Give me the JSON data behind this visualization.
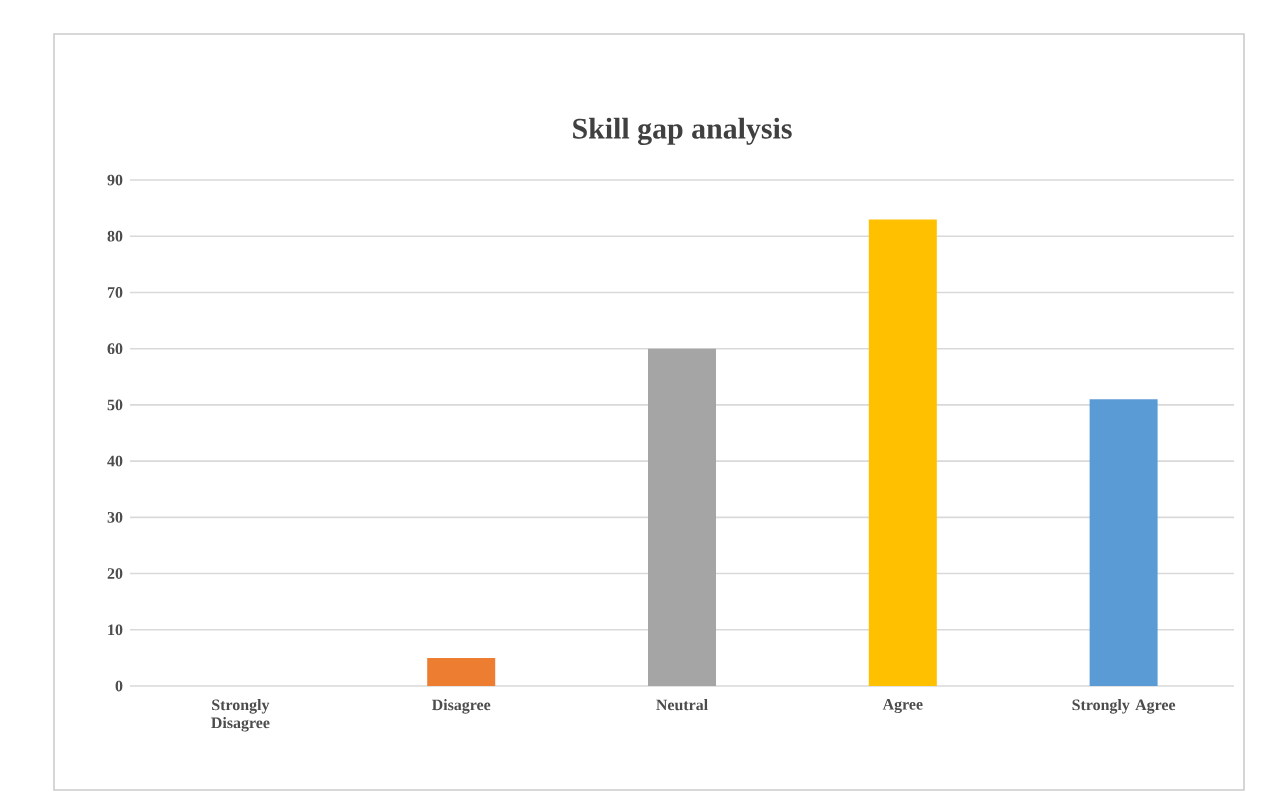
{
  "chart_data": {
    "type": "bar",
    "title": "Skill gap analysis",
    "categories": [
      "Strongly Disagree",
      "Disagree",
      "Neutral",
      "Agree",
      "Strongly Agree"
    ],
    "values": [
      0,
      5,
      60,
      83,
      51
    ],
    "colors": [
      "#4472c4",
      "#ed7d31",
      "#a5a5a5",
      "#ffc000",
      "#5b9bd5"
    ],
    "ylim": [
      0,
      90
    ],
    "yticks": [
      0,
      10,
      20,
      30,
      40,
      50,
      60,
      70,
      80,
      90
    ],
    "grid": "y"
  }
}
